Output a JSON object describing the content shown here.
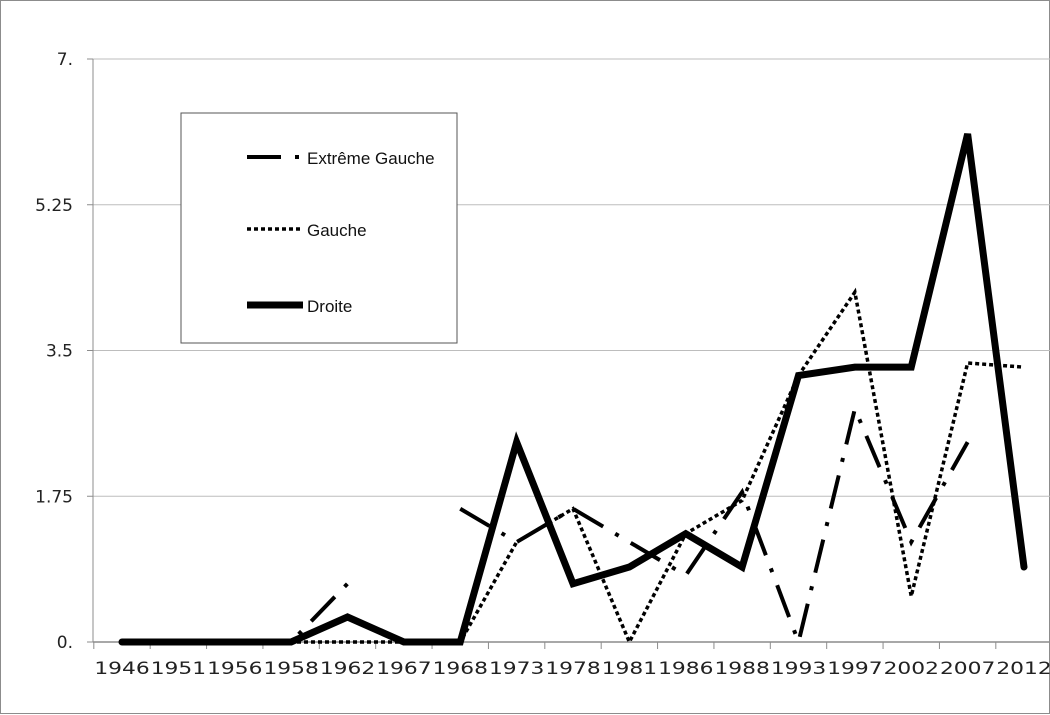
{
  "chart_data": {
    "type": "line",
    "title": "",
    "xlabel": "",
    "ylabel": "",
    "x": [
      "1946",
      "1951",
      "1956",
      "1958",
      "1962",
      "1967",
      "1968",
      "1973",
      "1978",
      "1981",
      "1986",
      "1988",
      "1993",
      "1997",
      "2002",
      "2007",
      "2012"
    ],
    "y_ticks": [
      "0.",
      "1.75",
      "3.5",
      "5.25",
      "7."
    ],
    "ylim": [
      0,
      7
    ],
    "grid": "horizontal",
    "legend_position": "top-left",
    "series": [
      {
        "name": "Extrême Gauche",
        "style": "dash-dot",
        "color": "#000000",
        "values": [
          0,
          0,
          0,
          0,
          0.7,
          null,
          1.6,
          1.2,
          1.6,
          1.2,
          0.8,
          1.8,
          0,
          2.8,
          1.2,
          2.4,
          null
        ]
      },
      {
        "name": "Gauche",
        "style": "dotted",
        "color": "#000000",
        "values": [
          0,
          0,
          0,
          0,
          0,
          0,
          0,
          1.2,
          1.6,
          0,
          1.3,
          1.7,
          3.2,
          4.2,
          0.55,
          3.35,
          3.3
        ]
      },
      {
        "name": "Droite",
        "style": "solid-thick",
        "color": "#000000",
        "values": [
          0,
          0,
          0,
          0,
          0.3,
          0,
          0,
          2.4,
          0.7,
          0.9,
          1.3,
          0.9,
          3.2,
          3.3,
          3.3,
          6.1,
          0.9
        ]
      }
    ]
  }
}
